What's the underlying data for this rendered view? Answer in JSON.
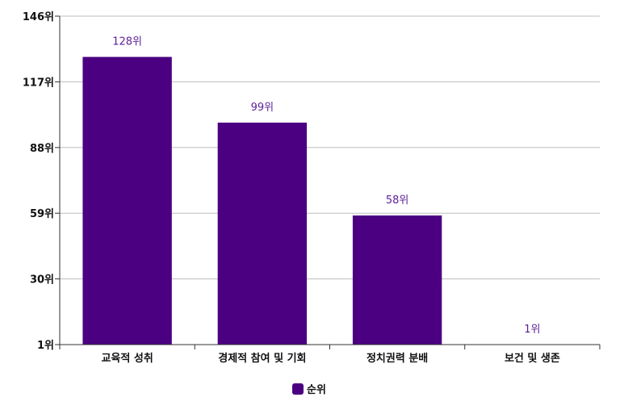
{
  "colors": {
    "bar": "#4b0082",
    "data_label": "#5b1f96",
    "grid": "#bdbdbd",
    "axis": "#333333",
    "text": "#111111"
  },
  "chart_data": {
    "type": "bar",
    "categories": [
      "교육적 성취",
      "경제적 참여 및 기회",
      "정치권력 분배",
      "보건 및 생존"
    ],
    "series": [
      {
        "name": "순위",
        "values": [
          128,
          99,
          58,
          1
        ],
        "data_labels": [
          "128위",
          "99위",
          "58위",
          "1위"
        ]
      }
    ],
    "y_ticks": [
      1,
      30,
      59,
      88,
      117,
      146
    ],
    "y_tick_labels": [
      "1위",
      "30위",
      "59위",
      "88위",
      "117위",
      "146위"
    ],
    "ylim": [
      1,
      146
    ],
    "grid": true,
    "legend": {
      "position": "bottom",
      "label": "순위"
    }
  }
}
